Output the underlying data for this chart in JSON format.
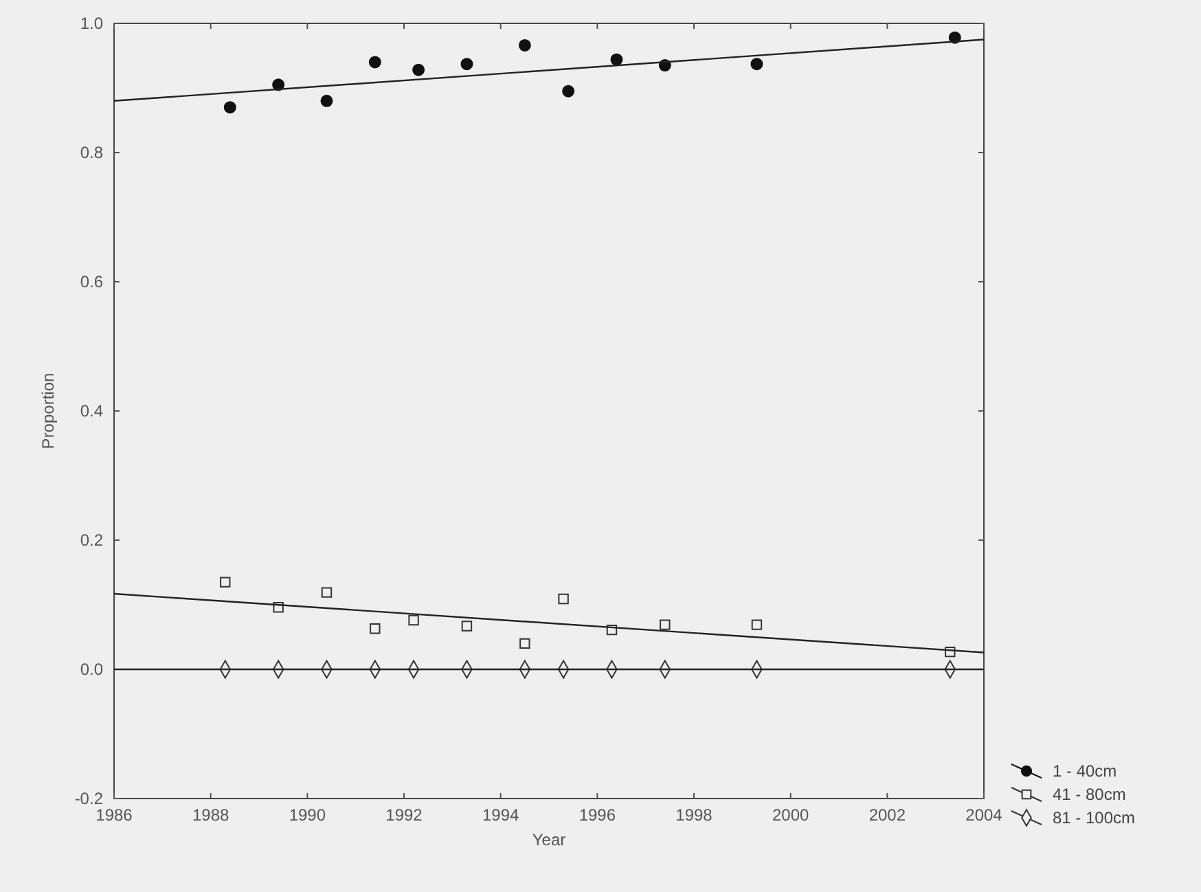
{
  "chart_data": {
    "type": "scatter",
    "xlabel": "Year",
    "ylabel": "Proportion",
    "xlim": [
      1986,
      2004
    ],
    "ylim": [
      -0.2,
      1.0
    ],
    "xticks": [
      1986,
      1988,
      1990,
      1992,
      1994,
      1996,
      1998,
      2000,
      2002,
      2004
    ],
    "yticks": [
      {
        "value": -0.2,
        "label": "-0.2"
      },
      {
        "value": 0,
        "label": "0.0"
      },
      {
        "value": 0.2,
        "label": "0.2"
      },
      {
        "value": 0.4,
        "label": "0.4"
      },
      {
        "value": 0.6,
        "label": "0.6"
      },
      {
        "value": 0.8,
        "label": "0.8"
      },
      {
        "value": 1,
        "label": "1.0"
      }
    ],
    "grid": false,
    "legend": "bottom right",
    "series": [
      {
        "name": "1 - 40cm",
        "marker": "circle",
        "color": "#111111",
        "x": [
          1988.4,
          1989.4,
          1990.4,
          1991.4,
          1992.3,
          1993.3,
          1994.5,
          1995.4,
          1996.4,
          1997.4,
          1999.3,
          2003.4
        ],
        "values": [
          0.87,
          0.905,
          0.88,
          0.94,
          0.928,
          0.937,
          0.966,
          0.895,
          0.944,
          0.935,
          0.937,
          0.978
        ]
      },
      {
        "name": "41 - 80cm",
        "marker": "square",
        "color": "#333333",
        "x": [
          1988.3,
          1989.4,
          1990.4,
          1991.4,
          1992.2,
          1993.3,
          1994.5,
          1995.3,
          1996.3,
          1997.4,
          1999.3,
          2003.3
        ],
        "values": [
          0.135,
          0.096,
          0.119,
          0.063,
          0.076,
          0.067,
          0.04,
          0.109,
          0.061,
          0.069,
          0.069,
          0.027
        ]
      },
      {
        "name": "81 - 100cm",
        "marker": "diamond",
        "color": "#333333",
        "x": [
          1988.3,
          1989.4,
          1990.4,
          1991.4,
          1992.2,
          1993.3,
          1994.5,
          1995.3,
          1996.3,
          1997.4,
          1999.3,
          2003.3
        ],
        "values": [
          0,
          0,
          0,
          0,
          0,
          0,
          0,
          0,
          0,
          0,
          0,
          0
        ]
      },
      {
        "type": "line",
        "color": "#222222",
        "x": [
          1986,
          2004
        ],
        "values": [
          0.88,
          0.975
        ]
      },
      {
        "type": "line",
        "color": "#222222",
        "x": [
          1986,
          2004
        ],
        "values": [
          0.117,
          0.026
        ]
      },
      {
        "type": "line",
        "color": "#222222",
        "x": [
          1986,
          2004
        ],
        "values": [
          0,
          0
        ]
      }
    ]
  }
}
